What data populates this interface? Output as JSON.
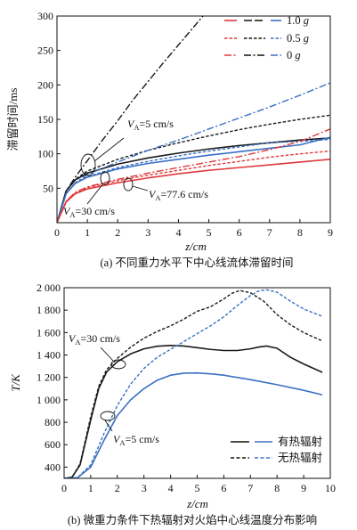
{
  "chart_data": [
    {
      "type": "line",
      "caption": "(a) 不同重力水平下中心线流体滞留时间",
      "xlabel": "z/cm",
      "ylabel": "滞留时间/ms",
      "xlim": [
        0,
        9
      ],
      "ylim": [
        0,
        300
      ],
      "xticks": [
        "0",
        "1",
        "2",
        "3",
        "4",
        "5",
        "6",
        "7",
        "8",
        "9"
      ],
      "yticks": [
        "50",
        "100",
        "150",
        "200",
        "250",
        "300"
      ],
      "grid": false,
      "legend_position": "top-right",
      "legend": [
        {
          "label": "1.0 g",
          "style": "solid"
        },
        {
          "label": "0.5 g",
          "style": "dashed"
        },
        {
          "label": "0 g",
          "style": "dashdot"
        }
      ],
      "annotations": [
        {
          "text": "VA=5 cm/s"
        },
        {
          "text": "VA=30 cm/s"
        },
        {
          "text": "VA=77.6 cm/s"
        }
      ],
      "series": [
        {
          "color": "#1a1a1a",
          "style": "solid",
          "x": [
            0,
            0.3,
            0.6,
            1,
            2,
            3,
            4,
            5,
            6,
            7,
            8,
            9
          ],
          "y": [
            0,
            46,
            62,
            72,
            85,
            94,
            101,
            107,
            112,
            116,
            120,
            123
          ]
        },
        {
          "color": "#1a1a1a",
          "style": "dashed",
          "x": [
            0,
            0.3,
            0.6,
            1,
            2,
            3,
            4,
            5,
            6,
            7,
            8,
            9
          ],
          "y": [
            0,
            46,
            63,
            75,
            92,
            105,
            116,
            126,
            135,
            143,
            150,
            156
          ]
        },
        {
          "color": "#1a1a1a",
          "style": "dashdot",
          "x": [
            0,
            0.3,
            0.6,
            1,
            1.5,
            2,
            2.5,
            3,
            3.5,
            4,
            4.5,
            5
          ],
          "y": [
            0,
            46,
            66,
            90,
            120,
            148,
            178,
            205,
            232,
            258,
            284,
            310
          ]
        },
        {
          "color": "#3a6fc4",
          "style": "solid",
          "x": [
            0,
            0.3,
            0.6,
            1,
            2,
            3,
            4,
            5,
            6,
            7,
            8,
            9
          ],
          "y": [
            0,
            42,
            57,
            66,
            78,
            86,
            92,
            98,
            103,
            108,
            113,
            124
          ]
        },
        {
          "color": "#3a6fc4",
          "style": "dashed",
          "x": [
            0,
            0.3,
            0.6,
            1,
            2,
            3,
            4,
            5,
            6,
            7,
            8,
            9
          ],
          "y": [
            0,
            42,
            57,
            67,
            80,
            89,
            97,
            104,
            110,
            116,
            118,
            121
          ]
        },
        {
          "color": "#3a6fc4",
          "style": "dashdot",
          "x": [
            0,
            0.3,
            0.6,
            1,
            2,
            3,
            4,
            5,
            6,
            7,
            8,
            9
          ],
          "y": [
            0,
            42,
            58,
            70,
            88,
            105,
            120,
            136,
            152,
            168,
            185,
            203
          ]
        },
        {
          "color": "#e0393c",
          "style": "solid",
          "x": [
            0,
            0.3,
            0.6,
            1,
            2,
            3,
            4,
            5,
            6,
            7,
            8,
            9
          ],
          "y": [
            0,
            30,
            42,
            49,
            58,
            65,
            71,
            76,
            80,
            84,
            88,
            92
          ]
        },
        {
          "color": "#e0393c",
          "style": "dashed",
          "x": [
            0,
            0.3,
            0.6,
            1,
            2,
            3,
            4,
            5,
            6,
            7,
            8,
            9
          ],
          "y": [
            0,
            31,
            43,
            51,
            61,
            69,
            76,
            83,
            89,
            95,
            100,
            104
          ]
        },
        {
          "color": "#e0393c",
          "style": "dashdot",
          "x": [
            0,
            0.3,
            0.6,
            1,
            2,
            3,
            4,
            5,
            6,
            7,
            8,
            9
          ],
          "y": [
            0,
            31,
            44,
            52,
            63,
            72,
            80,
            88,
            96,
            106,
            118,
            136
          ]
        }
      ]
    },
    {
      "type": "line",
      "caption": "(b) 微重力条件下热辐射对火焰中心线温度分布影响",
      "xlabel": "z/cm",
      "ylabel": "T/K",
      "xlim": [
        0,
        10
      ],
      "ylim": [
        300,
        2000
      ],
      "xticks": [
        "0",
        "1",
        "2",
        "3",
        "4",
        "5",
        "6",
        "7",
        "8",
        "9",
        "10"
      ],
      "yticks": [
        "400",
        "600",
        "800",
        "1 000",
        "1 200",
        "1 400",
        "1 600",
        "1 800",
        "2 000"
      ],
      "grid": false,
      "legend_position": "bottom-right",
      "legend": [
        {
          "label": "有热辐射",
          "style": "solid"
        },
        {
          "label": "无热辐射",
          "style": "dashed"
        }
      ],
      "annotations": [
        {
          "text": "VA=30 cm/s"
        },
        {
          "text": "VA=5 cm/s"
        }
      ],
      "series": [
        {
          "color": "#1a1a1a",
          "style": "solid",
          "x": [
            0,
            0.3,
            0.6,
            1,
            1.3,
            1.6,
            2,
            2.5,
            3,
            3.5,
            4,
            4.5,
            5,
            5.5,
            6,
            6.5,
            7,
            7.3,
            7.6,
            8,
            8.5,
            9,
            9.7
          ],
          "y": [
            300,
            310,
            420,
            820,
            1100,
            1250,
            1340,
            1410,
            1455,
            1478,
            1485,
            1480,
            1465,
            1450,
            1440,
            1440,
            1455,
            1470,
            1480,
            1460,
            1380,
            1320,
            1245
          ]
        },
        {
          "color": "#1a1a1a",
          "style": "dashed",
          "x": [
            0,
            0.3,
            0.6,
            1,
            1.3,
            1.6,
            2,
            2.5,
            3,
            3.5,
            4,
            4.5,
            5,
            5.5,
            6,
            6.3,
            6.6,
            7,
            7.5,
            8,
            8.5,
            9,
            9.7
          ],
          "y": [
            300,
            310,
            430,
            850,
            1120,
            1270,
            1370,
            1470,
            1550,
            1610,
            1660,
            1720,
            1790,
            1830,
            1900,
            1950,
            1975,
            1955,
            1880,
            1760,
            1670,
            1600,
            1525
          ]
        },
        {
          "color": "#3a6fc4",
          "style": "solid",
          "x": [
            0,
            0.5,
            1,
            1.5,
            2,
            2.5,
            3,
            3.5,
            4,
            4.5,
            5,
            5.5,
            6,
            7,
            8,
            9,
            9.7
          ],
          "y": [
            300,
            305,
            400,
            640,
            860,
            1000,
            1100,
            1175,
            1220,
            1238,
            1240,
            1232,
            1220,
            1180,
            1135,
            1085,
            1045
          ]
        },
        {
          "color": "#3a6fc4",
          "style": "dashed",
          "x": [
            0,
            0.5,
            1,
            1.5,
            2,
            2.5,
            3,
            3.5,
            4,
            4.5,
            5,
            5.5,
            6,
            6.5,
            7,
            7.3,
            7.6,
            8,
            8.5,
            9,
            9.7
          ],
          "y": [
            300,
            305,
            420,
            700,
            950,
            1140,
            1280,
            1380,
            1450,
            1520,
            1590,
            1660,
            1740,
            1840,
            1930,
            1970,
            1982,
            1960,
            1880,
            1810,
            1745
          ]
        }
      ]
    }
  ]
}
